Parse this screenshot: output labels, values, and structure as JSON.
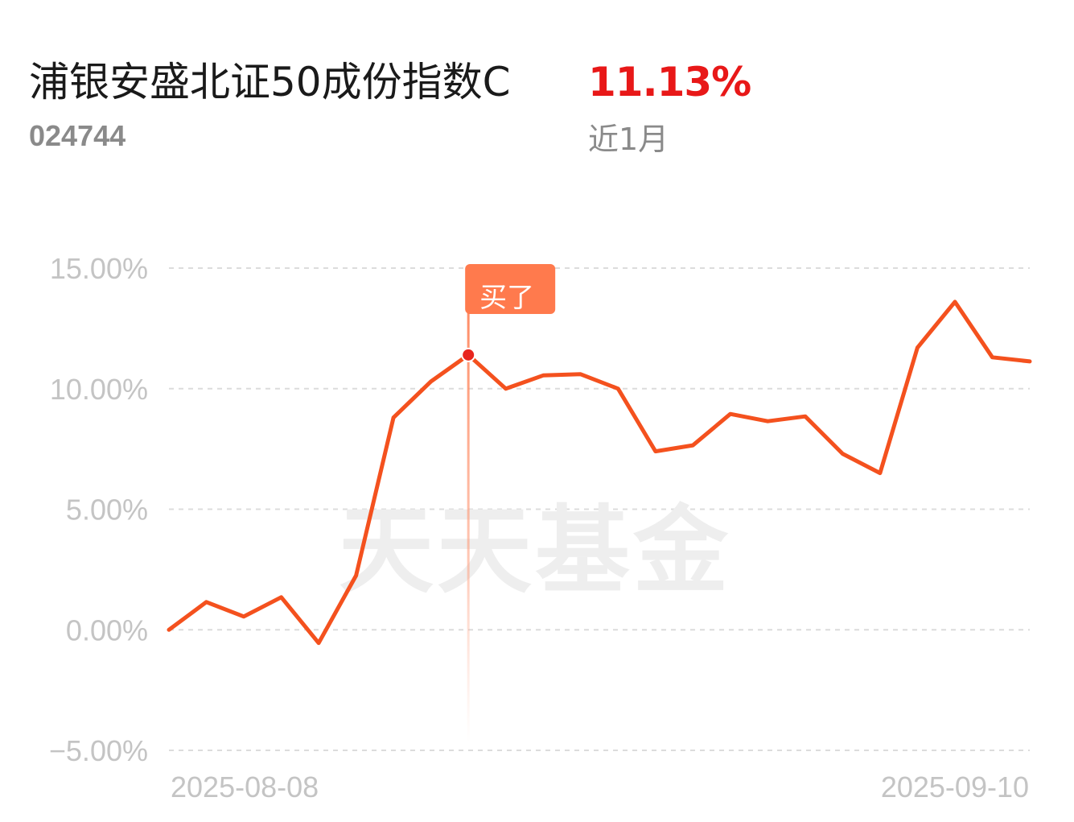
{
  "fund": {
    "name": "浦银安盛北证50成份指数C",
    "code": "024744",
    "return_value": "11.13%",
    "period_label": "近1月"
  },
  "watermark": "天天基金",
  "marker": {
    "label": "买了",
    "index": 8
  },
  "colors": {
    "line": "#f4511e",
    "marker_flag": "#ff7a4d",
    "return_red": "#e81818"
  },
  "chart_data": {
    "type": "line",
    "title": "",
    "xlabel": "",
    "ylabel": "",
    "ylim": [
      -5,
      15
    ],
    "yticks": [
      15,
      10,
      5,
      0,
      -5
    ],
    "ytick_labels": [
      "15.00%",
      "10.00%",
      "5.00%",
      "0.00%",
      "−5.00%"
    ],
    "x_start_label": "2025-08-08",
    "x_end_label": "2025-09-10",
    "grid": true,
    "series": [
      {
        "values": [
          0.0,
          1.15,
          0.55,
          1.35,
          -0.55,
          2.25,
          8.8,
          10.3,
          11.4,
          10.0,
          10.55,
          10.6,
          10.0,
          7.4,
          7.65,
          8.95,
          8.65,
          8.85,
          7.3,
          6.5,
          11.7,
          13.6,
          11.3,
          11.13
        ]
      }
    ]
  }
}
